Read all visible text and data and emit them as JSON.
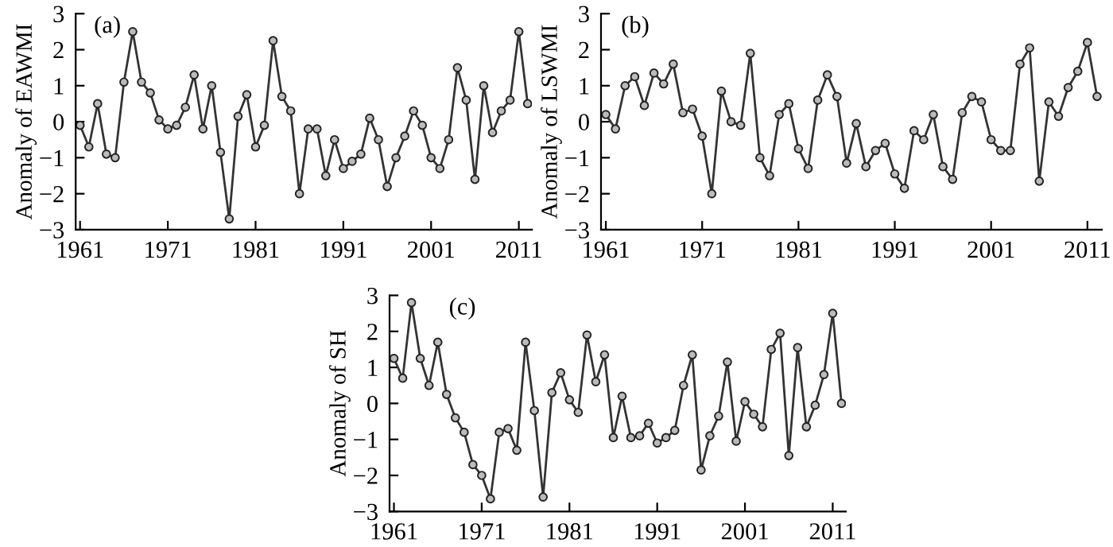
{
  "chart_data": [
    {
      "type": "line",
      "annotations": [
        "(a)"
      ],
      "ylabel": "Anomaly of EAWMI",
      "marker": "circle",
      "line_style": "solid",
      "grid": false,
      "x": [
        1961,
        1962,
        1963,
        1964,
        1965,
        1966,
        1967,
        1968,
        1969,
        1970,
        1971,
        1972,
        1973,
        1974,
        1975,
        1976,
        1977,
        1978,
        1979,
        1980,
        1981,
        1982,
        1983,
        1984,
        1985,
        1986,
        1987,
        1988,
        1989,
        1990,
        1991,
        1992,
        1993,
        1994,
        1995,
        1996,
        1997,
        1998,
        1999,
        2000,
        2001,
        2002,
        2003,
        2004,
        2005,
        2006,
        2007,
        2008,
        2009,
        2010,
        2011,
        2012
      ],
      "series": [
        {
          "color": "#333333",
          "values": [
            -0.1,
            -0.7,
            0.5,
            -0.9,
            -1.0,
            1.1,
            2.5,
            1.1,
            0.8,
            0.05,
            -0.2,
            -0.1,
            0.4,
            1.3,
            -0.2,
            1.0,
            -0.85,
            -2.7,
            0.15,
            0.75,
            -0.7,
            -0.1,
            2.25,
            0.7,
            0.3,
            -2.0,
            -0.2,
            -0.2,
            -1.5,
            -0.5,
            -1.3,
            -1.1,
            -0.9,
            0.1,
            -0.5,
            -1.8,
            -1.0,
            -0.4,
            0.3,
            -0.1,
            -1.0,
            -1.3,
            -0.5,
            1.5,
            0.6,
            -1.6,
            1.0,
            -0.3,
            0.3,
            0.6,
            2.5,
            0.5
          ]
        }
      ],
      "xlim": [
        1960.5,
        2012.5
      ],
      "xticks": [
        1961,
        1971,
        1981,
        1991,
        2001,
        2011
      ],
      "ylim": [
        -3,
        3
      ],
      "yticks": [
        {
          "value": -3,
          "label": "−3"
        },
        {
          "value": -2,
          "label": "−2"
        },
        {
          "value": -1,
          "label": "−1"
        },
        0,
        1,
        2,
        3
      ]
    },
    {
      "type": "line",
      "annotations": [
        "(b)"
      ],
      "ylabel": "Anomaly of LSWMI",
      "marker": "circle",
      "line_style": "solid",
      "grid": false,
      "x": [
        1961,
        1962,
        1963,
        1964,
        1965,
        1966,
        1967,
        1968,
        1969,
        1970,
        1971,
        1972,
        1973,
        1974,
        1975,
        1976,
        1977,
        1978,
        1979,
        1980,
        1981,
        1982,
        1983,
        1984,
        1985,
        1986,
        1987,
        1988,
        1989,
        1990,
        1991,
        1992,
        1993,
        1994,
        1995,
        1996,
        1997,
        1998,
        1999,
        2000,
        2001,
        2002,
        2003,
        2004,
        2005,
        2006,
        2007,
        2008,
        2009,
        2010,
        2011,
        2012
      ],
      "series": [
        {
          "color": "#333333",
          "values": [
            0.2,
            -0.2,
            1.0,
            1.25,
            0.45,
            1.35,
            1.05,
            1.6,
            0.25,
            0.35,
            -0.4,
            -2.0,
            0.85,
            0.0,
            -0.1,
            1.9,
            -1.0,
            -1.5,
            0.2,
            0.5,
            -0.75,
            -1.3,
            0.6,
            1.3,
            0.7,
            -1.15,
            -0.05,
            -1.25,
            -0.8,
            -0.6,
            -1.45,
            -1.85,
            -0.25,
            -0.5,
            0.2,
            -1.25,
            -1.6,
            0.25,
            0.7,
            0.55,
            -0.5,
            -0.8,
            -0.8,
            1.6,
            2.05,
            -1.65,
            0.55,
            0.15,
            0.95,
            1.4,
            2.2,
            0.7
          ]
        }
      ],
      "xlim": [
        1960.5,
        2012.5
      ],
      "xticks": [
        1961,
        1971,
        1981,
        1991,
        2001,
        2011
      ],
      "ylim": [
        -3,
        3
      ],
      "yticks": [
        {
          "value": -3,
          "label": "−3"
        },
        {
          "value": -2,
          "label": "−2"
        },
        {
          "value": -1,
          "label": "−1"
        },
        0,
        1,
        2,
        3
      ]
    },
    {
      "type": "line",
      "annotations": [
        "(c)"
      ],
      "ylabel": "Anomaly of SH",
      "marker": "circle",
      "line_style": "solid",
      "grid": false,
      "x": [
        1961,
        1962,
        1963,
        1964,
        1965,
        1966,
        1967,
        1968,
        1969,
        1970,
        1971,
        1972,
        1973,
        1974,
        1975,
        1976,
        1977,
        1978,
        1979,
        1980,
        1981,
        1982,
        1983,
        1984,
        1985,
        1986,
        1987,
        1988,
        1989,
        1990,
        1991,
        1992,
        1993,
        1994,
        1995,
        1996,
        1997,
        1998,
        1999,
        2000,
        2001,
        2002,
        2003,
        2004,
        2005,
        2006,
        2007,
        2008,
        2009,
        2010,
        2011,
        2012
      ],
      "series": [
        {
          "color": "#333333",
          "values": [
            1.25,
            0.7,
            2.8,
            1.25,
            0.5,
            1.7,
            0.25,
            -0.4,
            -0.8,
            -1.7,
            -2.0,
            -2.65,
            -0.8,
            -0.7,
            -1.3,
            1.7,
            -0.2,
            -2.6,
            0.3,
            0.85,
            0.1,
            -0.25,
            1.9,
            0.6,
            1.35,
            -0.95,
            0.2,
            -0.95,
            -0.9,
            -0.55,
            -1.1,
            -0.95,
            -0.75,
            0.5,
            1.35,
            -1.85,
            -0.9,
            -0.35,
            1.15,
            -1.05,
            0.05,
            -0.3,
            -0.65,
            1.5,
            1.95,
            -1.45,
            1.55,
            -0.65,
            -0.05,
            0.8,
            2.5,
            0.0
          ]
        }
      ],
      "xlim": [
        1960.5,
        2012.5
      ],
      "xticks": [
        1961,
        1971,
        1981,
        1991,
        2001,
        2011
      ],
      "ylim": [
        -3,
        3
      ],
      "yticks": [
        {
          "value": -3,
          "label": "−3"
        },
        {
          "value": -2,
          "label": "−2"
        },
        {
          "value": -1,
          "label": "−1"
        },
        0,
        1,
        2,
        3
      ]
    }
  ]
}
